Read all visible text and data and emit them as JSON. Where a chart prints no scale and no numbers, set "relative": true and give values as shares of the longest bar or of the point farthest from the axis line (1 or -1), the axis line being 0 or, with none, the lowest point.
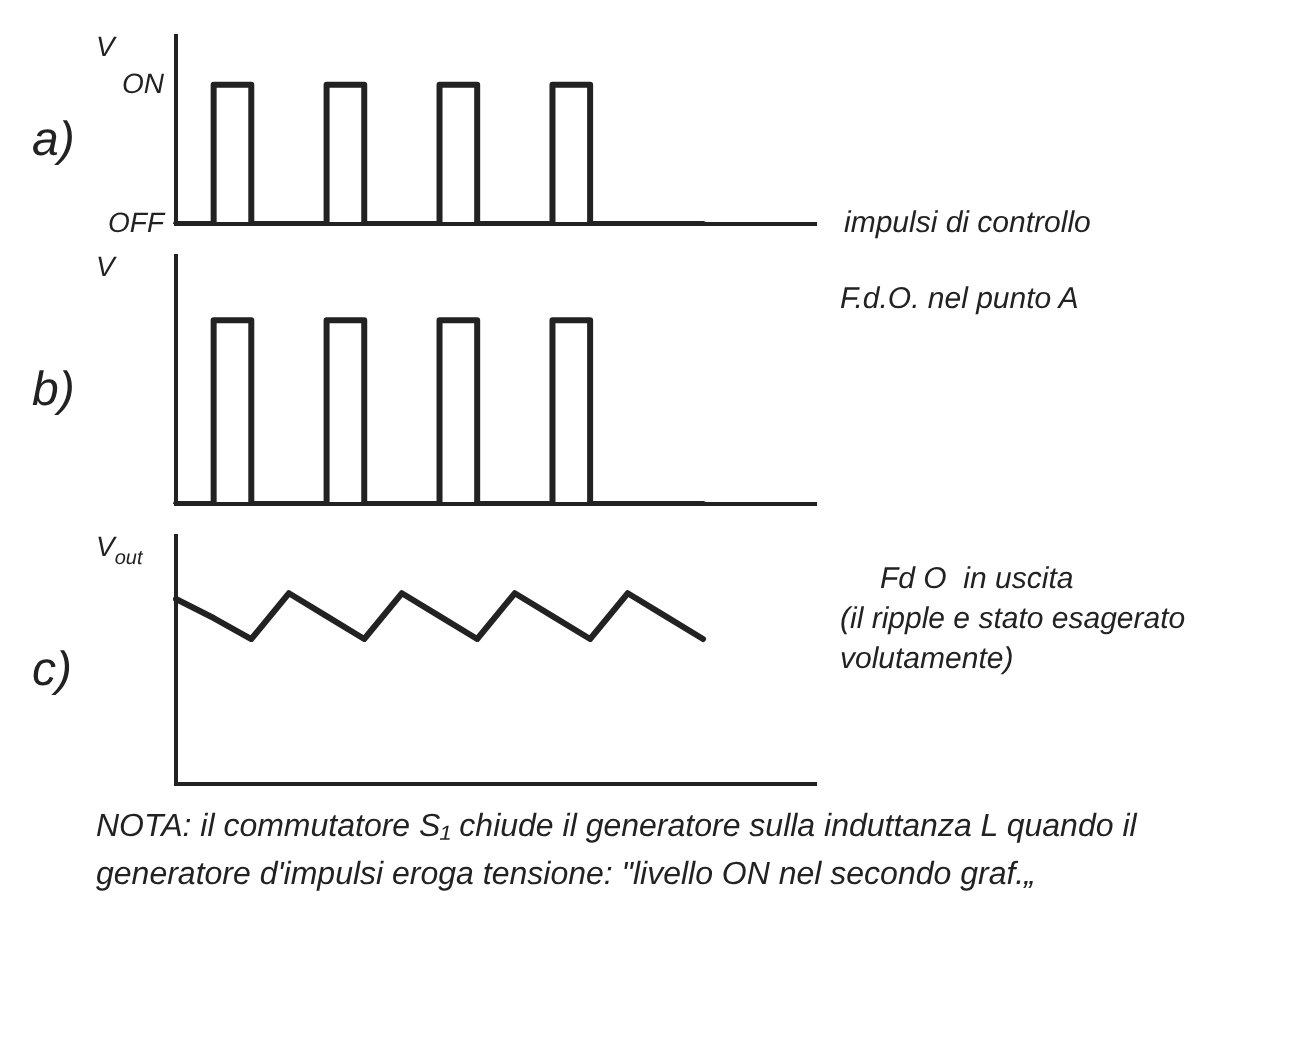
{
  "chart_data": [
    {
      "type": "step",
      "title": "a)",
      "ylabel": "V",
      "xlabel": "impulsi di controllo",
      "categories": [
        null,
        null,
        null,
        null,
        null,
        null,
        null,
        null,
        null,
        null,
        null,
        null,
        null,
        null,
        null,
        null,
        null,
        null
      ],
      "values": [
        0,
        0,
        1,
        0,
        0,
        1,
        0,
        0,
        1,
        0,
        0,
        1,
        0,
        0,
        0,
        null,
        null,
        null
      ],
      "color": "#222222",
      "relative": true,
      "annotations": [
        "ON",
        "OFF"
      ]
    },
    {
      "type": "step",
      "title": "b)",
      "ylabel": "V",
      "annotations": [
        "F.d.O. nel punto A"
      ],
      "categories": [
        null,
        null,
        null,
        null,
        null,
        null,
        null,
        null,
        null,
        null,
        null,
        null,
        null,
        null,
        null,
        null,
        null,
        null
      ],
      "values": [
        0,
        0,
        1,
        0,
        0,
        1,
        0,
        0,
        1,
        0,
        0,
        1,
        0,
        0,
        0,
        null,
        null,
        null
      ],
      "color": "#222222",
      "relative": true
    },
    {
      "type": "line",
      "title": "c)",
      "ylabel": "V$_{out}$",
      "annotations": [
        "Fd O  in uscita",
        "(il ripple e stato esagerato volutamente)",
        "NOTA: il commutatore S₁ chiude il generatore sulla induttanza L quando il generatore d'impulsi eroga tensione: \"livello ON nel secondo graf.„"
      ],
      "categories": [
        null,
        null,
        null,
        null,
        null,
        null,
        null,
        null,
        null,
        null,
        null,
        null,
        null,
        null,
        null,
        null,
        null,
        null
      ],
      "values": [
        0.97,
        0.87,
        0.76,
        1,
        0.88,
        0.76,
        1,
        0.88,
        0.76,
        1,
        0.88,
        0.76,
        1,
        0.88,
        0.76,
        null,
        null,
        null
      ],
      "color": "#222222",
      "relative": true
    }
  ]
}
